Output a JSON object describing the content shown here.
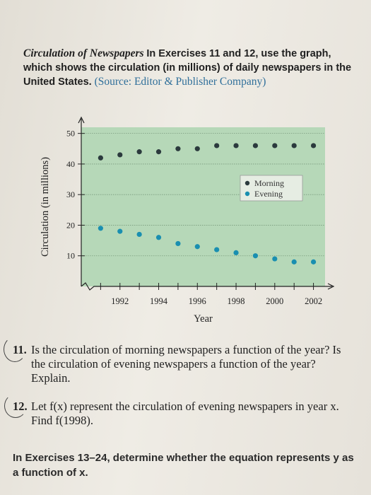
{
  "intro": {
    "title": "Circulation of Newspapers",
    "text": "In Exercises 11 and 12, use the graph, which shows the circulation (in millions) of daily newspapers in the United States.",
    "source": "(Source: Editor & Publisher Company)"
  },
  "chart_data": {
    "type": "scatter",
    "title": "",
    "xlabel": "Year",
    "ylabel": "Circulation (in millions)",
    "x": [
      1991,
      1992,
      1993,
      1994,
      1995,
      1996,
      1997,
      1998,
      1999,
      2000,
      2001,
      2002
    ],
    "xticks": [
      "1992",
      "1994",
      "1996",
      "1998",
      "2000",
      "2002"
    ],
    "yticks": [
      "10",
      "20",
      "30",
      "40",
      "50"
    ],
    "xlim": [
      1990,
      2002.6
    ],
    "ylim": [
      0,
      52
    ],
    "grid": true,
    "legend_position": "right",
    "series": [
      {
        "name": "Morning",
        "color": "#2b3a3d",
        "values": [
          42,
          43,
          44,
          44,
          45,
          45,
          46,
          46,
          46,
          46,
          46,
          46
        ]
      },
      {
        "name": "Evening",
        "color": "#1a8fb0",
        "values": [
          19,
          18,
          17,
          16,
          14,
          13,
          12,
          11,
          10,
          9,
          8,
          8
        ]
      }
    ],
    "colors": {
      "plot_bg": "#b6d8b8"
    }
  },
  "exercises": [
    {
      "number": "11.",
      "text": "Is the circulation of morning newspapers a function of the year? Is the circulation of evening newspapers a function of the year? Explain."
    },
    {
      "number": "12.",
      "text": "Let f(x) represent the circulation of evening newspapers in year x. Find f(1998)."
    }
  ],
  "footer": {
    "text": "In Exercises 13–24, determine whether the equation represents y as a function of x."
  }
}
